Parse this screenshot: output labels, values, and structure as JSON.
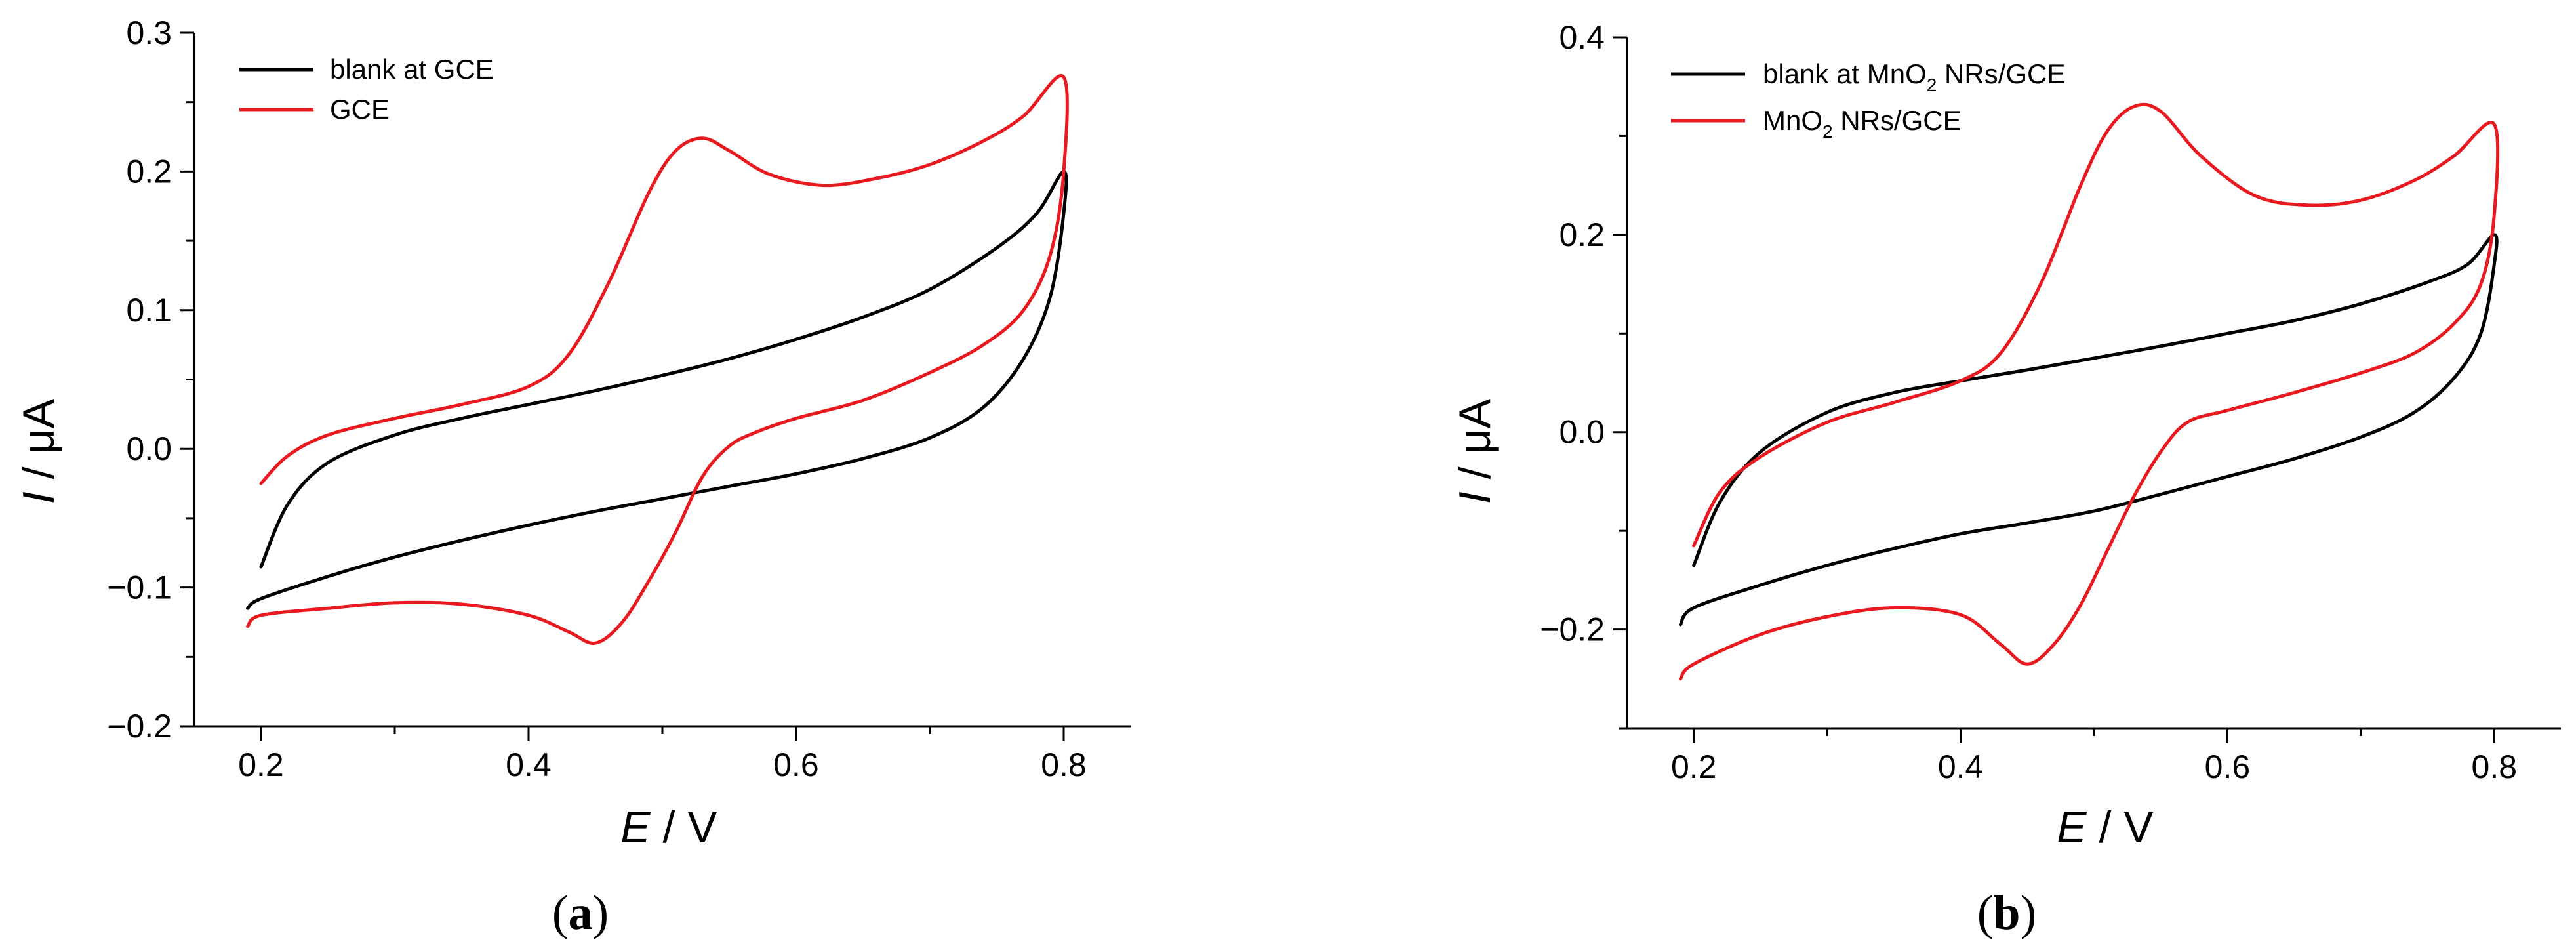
{
  "chart_data": [
    {
      "type": "line",
      "panel_label": "(a)",
      "xlabel": {
        "var": "E",
        "sep": " / ",
        "unit": "V"
      },
      "ylabel": {
        "var": "I",
        "sep": " / ",
        "unit": "μA"
      },
      "xlim": [
        0.15,
        0.85
      ],
      "ylim": [
        -0.2,
        0.3
      ],
      "x_ticks": [
        0.2,
        0.4,
        0.6,
        0.8
      ],
      "x_tick_labels": [
        "0.2",
        "0.4",
        "0.6",
        "0.8"
      ],
      "y_ticks": [
        -0.2,
        -0.1,
        0.0,
        0.1,
        0.2,
        0.3
      ],
      "y_tick_labels": [
        "−0.2",
        "−0.1",
        "0.0",
        "0.1",
        "0.2",
        "0.3"
      ],
      "grid": false,
      "legend_position": "top-left",
      "series": [
        {
          "name": "blank at GCE",
          "color": "#000000",
          "x": [
            0.2,
            0.22,
            0.25,
            0.3,
            0.35,
            0.4,
            0.45,
            0.5,
            0.55,
            0.6,
            0.65,
            0.7,
            0.75,
            0.78,
            0.8,
            0.8,
            0.79,
            0.77,
            0.74,
            0.7,
            0.65,
            0.6,
            0.55,
            0.5,
            0.45,
            0.4,
            0.35,
            0.3,
            0.25,
            0.2,
            0.19
          ],
          "y": [
            -0.085,
            -0.04,
            -0.01,
            0.01,
            0.022,
            0.032,
            0.042,
            0.053,
            0.065,
            0.079,
            0.095,
            0.115,
            0.145,
            0.17,
            0.2,
            0.17,
            0.11,
            0.065,
            0.03,
            0.008,
            -0.007,
            -0.018,
            -0.027,
            -0.036,
            -0.045,
            -0.055,
            -0.066,
            -0.078,
            -0.092,
            -0.108,
            -0.115
          ]
        },
        {
          "name": "GCE",
          "color": "#e8191f",
          "x": [
            0.2,
            0.22,
            0.25,
            0.3,
            0.35,
            0.4,
            0.43,
            0.46,
            0.49,
            0.51,
            0.53,
            0.55,
            0.58,
            0.62,
            0.66,
            0.7,
            0.74,
            0.77,
            0.8,
            0.8,
            0.79,
            0.77,
            0.74,
            0.7,
            0.65,
            0.6,
            0.57,
            0.55,
            0.53,
            0.51,
            0.49,
            0.47,
            0.45,
            0.43,
            0.4,
            0.35,
            0.3,
            0.25,
            0.2,
            0.19
          ],
          "y": [
            -0.025,
            -0.005,
            0.01,
            0.022,
            0.032,
            0.045,
            0.068,
            0.12,
            0.185,
            0.215,
            0.224,
            0.215,
            0.198,
            0.19,
            0.195,
            0.205,
            0.222,
            0.24,
            0.268,
            0.2,
            0.14,
            0.1,
            0.075,
            0.055,
            0.035,
            0.022,
            0.012,
            0.002,
            -0.02,
            -0.06,
            -0.095,
            -0.125,
            -0.14,
            -0.132,
            -0.12,
            -0.112,
            -0.111,
            -0.115,
            -0.12,
            -0.128
          ]
        }
      ]
    },
    {
      "type": "line",
      "panel_label": "(b)",
      "xlabel": {
        "var": "E",
        "sep": " / ",
        "unit": "V"
      },
      "ylabel": {
        "var": "I",
        "sep": " / ",
        "unit": "μA"
      },
      "xlim": [
        0.15,
        0.85
      ],
      "ylim": [
        -0.3,
        0.4
      ],
      "x_ticks": [
        0.2,
        0.4,
        0.6,
        0.8
      ],
      "x_tick_labels": [
        "0.2",
        "0.4",
        "0.6",
        "0.8"
      ],
      "y_ticks": [
        -0.2,
        0.0,
        0.2,
        0.4
      ],
      "y_tick_labels": [
        "−0.2",
        "0.0",
        "0.2",
        "0.4"
      ],
      "y_minor_step": 0.1,
      "grid": false,
      "legend_position": "top-left",
      "series": [
        {
          "name": "blank at MnO2 NRs/GCE",
          "name_parts": [
            "blank at MnO",
            "2",
            " NRs/GCE"
          ],
          "color": "#000000",
          "x": [
            0.2,
            0.22,
            0.25,
            0.3,
            0.35,
            0.4,
            0.45,
            0.5,
            0.55,
            0.6,
            0.65,
            0.7,
            0.75,
            0.78,
            0.8,
            0.8,
            0.79,
            0.77,
            0.74,
            0.7,
            0.65,
            0.6,
            0.55,
            0.5,
            0.45,
            0.4,
            0.35,
            0.3,
            0.25,
            0.2,
            0.19
          ],
          "y": [
            -0.135,
            -0.07,
            -0.02,
            0.02,
            0.04,
            0.052,
            0.063,
            0.075,
            0.087,
            0.1,
            0.113,
            0.13,
            0.152,
            0.17,
            0.2,
            0.17,
            0.1,
            0.055,
            0.02,
            -0.005,
            -0.027,
            -0.045,
            -0.063,
            -0.08,
            -0.092,
            -0.103,
            -0.118,
            -0.135,
            -0.155,
            -0.178,
            -0.195
          ]
        },
        {
          "name": "MnO2 NRs/GCE",
          "name_parts": [
            "MnO",
            "2",
            " NRs/GCE"
          ],
          "color": "#e8191f",
          "x": [
            0.2,
            0.22,
            0.25,
            0.3,
            0.35,
            0.4,
            0.43,
            0.46,
            0.49,
            0.51,
            0.53,
            0.55,
            0.58,
            0.62,
            0.66,
            0.7,
            0.74,
            0.77,
            0.8,
            0.8,
            0.79,
            0.77,
            0.74,
            0.7,
            0.65,
            0.6,
            0.57,
            0.55,
            0.53,
            0.51,
            0.49,
            0.47,
            0.45,
            0.43,
            0.4,
            0.35,
            0.3,
            0.25,
            0.2,
            0.19
          ],
          "y": [
            -0.115,
            -0.06,
            -0.025,
            0.01,
            0.03,
            0.052,
            0.08,
            0.15,
            0.25,
            0.305,
            0.33,
            0.325,
            0.28,
            0.24,
            0.23,
            0.235,
            0.255,
            0.28,
            0.312,
            0.22,
            0.15,
            0.11,
            0.08,
            0.06,
            0.04,
            0.022,
            0.01,
            -0.02,
            -0.065,
            -0.12,
            -0.175,
            -0.215,
            -0.235,
            -0.215,
            -0.185,
            -0.178,
            -0.187,
            -0.205,
            -0.235,
            -0.25
          ]
        }
      ]
    }
  ]
}
